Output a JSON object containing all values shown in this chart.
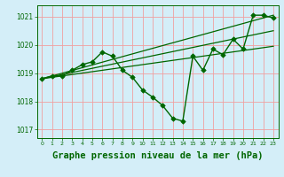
{
  "background_color": "#d4eef8",
  "grid_color": "#f0a0a0",
  "line_color": "#006600",
  "marker_color": "#006600",
  "title": "Graphe pression niveau de la mer (hPa)",
  "title_fontsize": 7.5,
  "xlim": [
    -0.5,
    23.5
  ],
  "ylim": [
    1016.7,
    1021.4
  ],
  "yticks": [
    1017,
    1018,
    1019,
    1020,
    1021
  ],
  "xticks": [
    0,
    1,
    2,
    3,
    4,
    5,
    6,
    7,
    8,
    9,
    10,
    11,
    12,
    13,
    14,
    15,
    16,
    17,
    18,
    19,
    20,
    21,
    22,
    23
  ],
  "series_main": {
    "x": [
      0,
      1,
      2,
      3,
      4,
      5,
      6,
      7,
      8,
      9,
      10,
      11,
      12,
      13,
      14,
      15,
      16,
      17,
      18,
      19,
      20,
      21,
      22,
      23
    ],
    "y": [
      1018.8,
      1018.9,
      1018.9,
      1019.1,
      1019.3,
      1019.4,
      1019.75,
      1019.6,
      1019.1,
      1018.85,
      1018.4,
      1018.15,
      1017.85,
      1017.4,
      1017.3,
      1019.6,
      1019.1,
      1019.85,
      1019.65,
      1020.2,
      1019.85,
      1021.05,
      1021.05,
      1020.95
    ]
  },
  "series_linear": [
    {
      "x": [
        0,
        23
      ],
      "y": [
        1018.8,
        1021.05
      ]
    },
    {
      "x": [
        0,
        23
      ],
      "y": [
        1018.8,
        1020.5
      ]
    },
    {
      "x": [
        0,
        23
      ],
      "y": [
        1018.8,
        1019.95
      ]
    }
  ]
}
